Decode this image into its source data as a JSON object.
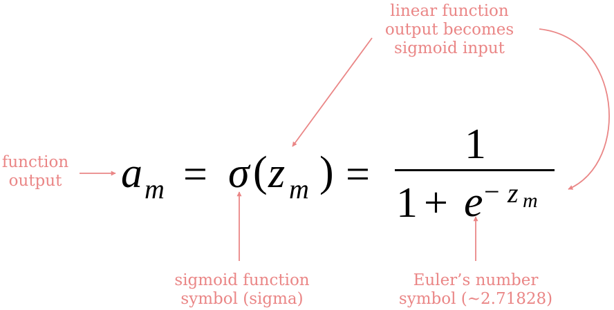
{
  "equation": {
    "a": "a",
    "a_sub": "m",
    "equals1": "=",
    "sigma": "σ",
    "open_paren": "(",
    "z": "z",
    "z_sub": "m",
    "close_paren": ")",
    "equals2": "=",
    "numerator": "1",
    "denom_one": "1",
    "plus": "+",
    "e": "e",
    "exp_minus": "−",
    "exp_z": "z",
    "exp_sub": "m"
  },
  "annotations": {
    "function_output": [
      "function",
      "output"
    ],
    "linear_input": [
      "linear function",
      "output becomes",
      "sigmoid input"
    ],
    "sigmoid_symbol": [
      "sigmoid function",
      "symbol (sigma)"
    ],
    "euler": [
      "Euler’s number",
      "symbol (~2.71828)"
    ]
  },
  "colors": {
    "annotation": "#ea8686",
    "equation": "#000000"
  }
}
